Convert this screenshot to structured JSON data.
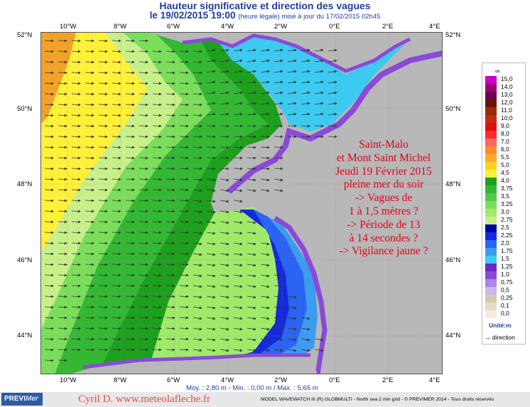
{
  "title": "Hauteur significative et direction des vagues",
  "subtitle": {
    "date": "le 19/02/2015 19:00",
    "note": "(heure légale) mise à jour du 17/02/2015 02h45"
  },
  "axes": {
    "longitude_labels": [
      "10°W",
      "8°W",
      "6°W",
      "4°W",
      "2°W",
      "0°E",
      "2°E",
      "4°E"
    ],
    "latitude_labels": [
      "52°N",
      "50°N",
      "48°N",
      "46°N",
      "44°N"
    ]
  },
  "legend": {
    "top_symbol": "∞",
    "levels": [
      "15,0",
      "14,0",
      "13,0",
      "12,0",
      "11,0",
      "10,0",
      "9,0",
      "8,0",
      "7,0",
      "6,0",
      "5,5",
      "5,0",
      "4,5",
      "4,0",
      "3,75",
      "3,5",
      "3,25",
      "3,0",
      "2,75",
      "2,5",
      "2,25",
      "2,0",
      "1,75",
      "1,5",
      "1,25",
      "1,0",
      "0,75",
      "0,5",
      "0,25",
      "0,1",
      "0,0"
    ],
    "colors": [
      "#c800c8",
      "#a0007a",
      "#6e0050",
      "#6a1400",
      "#9a2a0a",
      "#c03010",
      "#e01010",
      "#ff2a2a",
      "#ff6666",
      "#ff8c2a",
      "#ffaa2a",
      "#ffd21a",
      "#fff03a",
      "#1ea01e",
      "#34b834",
      "#52c852",
      "#7ade5a",
      "#a0ea6a",
      "#c8f08a",
      "#0000a8",
      "#1428e0",
      "#2a64f0",
      "#3c9cf0",
      "#3ccaf0",
      "#6a28c8",
      "#8a4ad8",
      "#aa86e6",
      "#cab6f0",
      "#d8c8b0",
      "#e6dcc8",
      "#f2ede0"
    ],
    "unit": "Unité:m",
    "direction_label": "direction"
  },
  "stats": "Moy. : 2,80 m   -   Min. : 0,00 m / Max. : 5,65 m",
  "credit": "Cyril D. www.meteolafleche.fr",
  "logo": {
    "a": "PREVI",
    "b": "Mer"
  },
  "model_line": "MODEL WAVEWATCH III (R) GLOBMULTI - North sea 2 min grid - © PREVIMER 2014 - Tous droits réservés",
  "annotation": "Saint-Malo\net Mont Saint Michel\nJeudi 19 Février 2015\npleine mer du soir\n-> Vagues de\n1 à 1,5 mètres ?\n-> Période de 13\nà 14 secondes ?\n-> Vigilance jaune ?",
  "map": {
    "extent": {
      "lon": [
        -11,
        4
      ],
      "lat": [
        43,
        52
      ]
    },
    "land_color": "#b8b8b8"
  }
}
